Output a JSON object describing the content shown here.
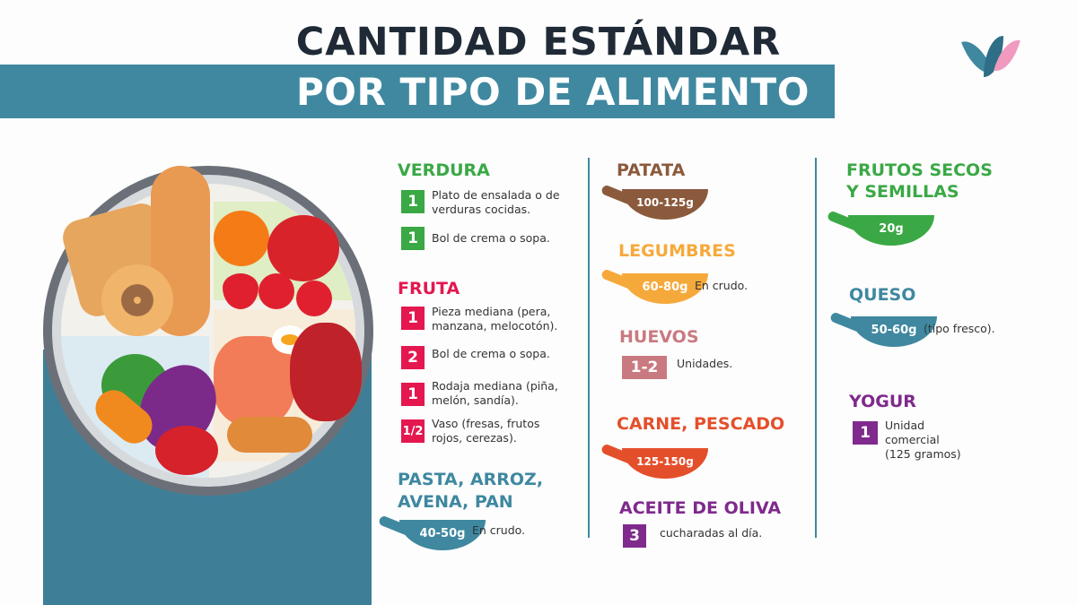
{
  "header": {
    "title_line1": "CANTIDAD ESTÁNDAR",
    "title_line2": "POR TIPO DE ALIMENTO"
  },
  "colors": {
    "teal": "#3f88a0",
    "green": "#3aa845",
    "red": "#e4174f",
    "brown": "#8b5a3c",
    "orange": "#f6a93b",
    "mauve": "#c97a80",
    "redorange": "#e44f2b",
    "purple": "#7f2a8c",
    "dark": "#1f2a36"
  },
  "col1": {
    "verdura": {
      "title": "VERDURA",
      "items": [
        {
          "qty": "1",
          "text": "Plato de ensalada o de verduras cocidas."
        },
        {
          "qty": "1",
          "text": "Bol de crema o sopa."
        }
      ]
    },
    "fruta": {
      "title": "FRUTA",
      "items": [
        {
          "qty": "1",
          "text": "Pieza mediana (pera, manzana, melocotón)."
        },
        {
          "qty": "2",
          "text": "Bol de crema o sopa."
        },
        {
          "qty": "1",
          "text": "Rodaja mediana (piña, melón, sandía)."
        },
        {
          "qty": "1/2",
          "text": "Vaso (fresas, frutos rojos, cerezas)."
        }
      ]
    },
    "pasta": {
      "title_line1": "PASTA, ARROZ,",
      "title_line2": "AVENA, PAN",
      "amount": "40-50g",
      "note": "En crudo."
    }
  },
  "col2": {
    "patata": {
      "title": "PATATA",
      "amount": "100-125g"
    },
    "legumbres": {
      "title": "LEGUMBRES",
      "amount": "60-80g",
      "note": "En crudo."
    },
    "huevos": {
      "title": "HUEVOS",
      "qty": "1-2",
      "note": "Unidades."
    },
    "carne": {
      "title": "CARNE, PESCADO",
      "amount": "125-150g"
    },
    "aceite": {
      "title": "ACEITE DE OLIVA",
      "qty": "3",
      "note": "cucharadas al día."
    }
  },
  "col3": {
    "frutos": {
      "title_line1": "FRUTOS SECOS",
      "title_line2": "Y SEMILLAS",
      "amount": "20g"
    },
    "queso": {
      "title": "QUESO",
      "amount": "50-60g",
      "note": "(tipo fresco)."
    },
    "yogur": {
      "title": "YOGUR",
      "qty": "1",
      "note": "Unidad comercial (125 gramos)"
    }
  }
}
